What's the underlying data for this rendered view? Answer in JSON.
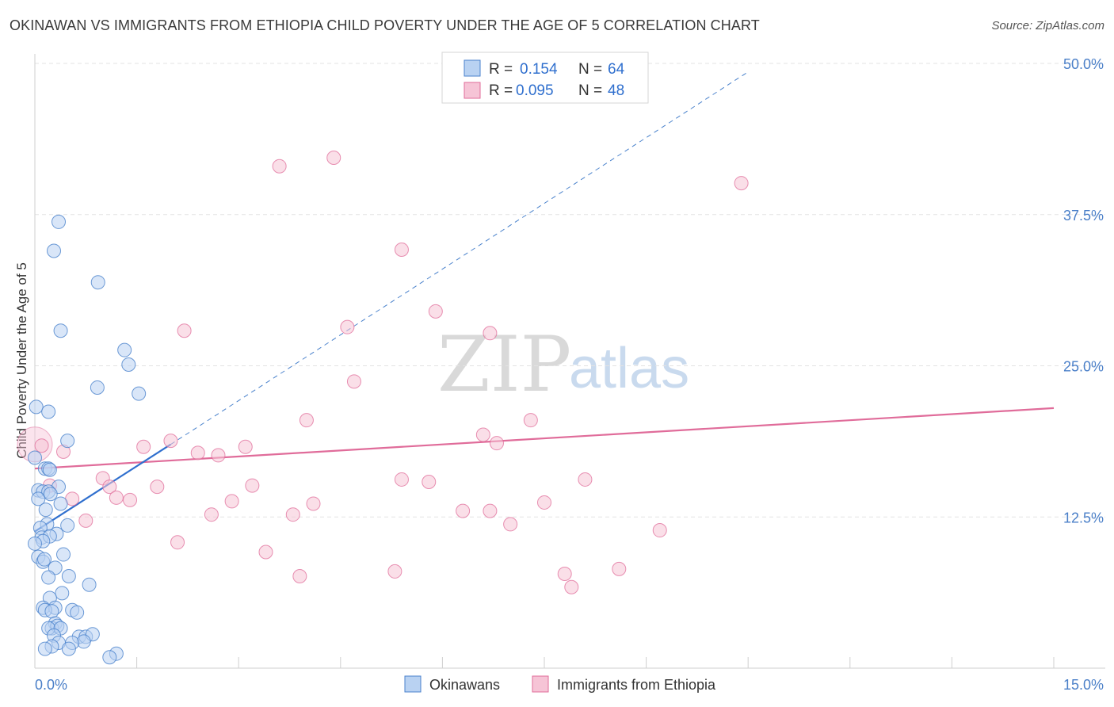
{
  "title": "OKINAWAN VS IMMIGRANTS FROM ETHIOPIA CHILD POVERTY UNDER THE AGE OF 5 CORRELATION CHART",
  "source": "Source: ZipAtlas.com",
  "watermark": {
    "zip": "ZIP",
    "atlas": "atlas"
  },
  "colors": {
    "blue": "#4a82cc",
    "blue_fill": "#b9d2f2",
    "pink": "#e06c9a",
    "pink_fill": "#f6c4d6",
    "tick_text": "#4a7fc8",
    "grid": "#e3e3e3"
  },
  "legend": {
    "rows": [
      {
        "r_label": "R =",
        "r_value": "0.154",
        "n_label": "N =",
        "n_value": "64",
        "series": "blue"
      },
      {
        "r_label": "R =",
        "r_value": "0.095",
        "n_label": "N =",
        "n_value": "48",
        "series": "pink"
      }
    ]
  },
  "chart_data": {
    "type": "scatter",
    "title": "OKINAWAN VS IMMIGRANTS FROM ETHIOPIA CHILD POVERTY UNDER THE AGE OF 5 CORRELATION CHART",
    "xlabel": "",
    "ylabel": "Child Poverty Under the Age of 5",
    "xlim": [
      0,
      15
    ],
    "ylim": [
      0,
      50
    ],
    "x_tick_labels": [
      {
        "value": 0,
        "label": "0.0%"
      },
      {
        "value": 15,
        "label": "15.0%"
      }
    ],
    "y_tick_labels": [
      {
        "value": 12.5,
        "label": "12.5%"
      },
      {
        "value": 25,
        "label": "25.0%"
      },
      {
        "value": 37.5,
        "label": "37.5%"
      },
      {
        "value": 50,
        "label": "50.0%"
      }
    ],
    "y_gridlines": [
      12.5,
      25,
      37.5,
      50
    ],
    "series": [
      {
        "name": "Okinawans",
        "color": "blue",
        "r": 0.154,
        "n": 64,
        "trend_solid": {
          "x": [
            0.0,
            2.0
          ],
          "y": [
            11.3,
            18.5
          ]
        },
        "trend_dashed": {
          "x": [
            2.0,
            10.5
          ],
          "y": [
            18.5,
            49.3
          ]
        },
        "points": [
          [
            0.35,
            36.9
          ],
          [
            0.28,
            34.5
          ],
          [
            0.93,
            31.9
          ],
          [
            0.38,
            27.9
          ],
          [
            1.32,
            26.3
          ],
          [
            1.38,
            25.1
          ],
          [
            0.92,
            23.2
          ],
          [
            1.53,
            22.7
          ],
          [
            0.02,
            21.6
          ],
          [
            0.2,
            21.2
          ],
          [
            0.48,
            18.8
          ],
          [
            0.0,
            17.4
          ],
          [
            0.15,
            16.5
          ],
          [
            0.2,
            16.5
          ],
          [
            0.22,
            16.4
          ],
          [
            0.35,
            15.0
          ],
          [
            0.05,
            14.7
          ],
          [
            0.12,
            14.6
          ],
          [
            0.2,
            14.6
          ],
          [
            0.23,
            14.4
          ],
          [
            0.05,
            14.0
          ],
          [
            0.38,
            13.6
          ],
          [
            0.16,
            13.1
          ],
          [
            0.48,
            11.8
          ],
          [
            0.18,
            11.9
          ],
          [
            0.08,
            11.6
          ],
          [
            0.32,
            11.1
          ],
          [
            0.1,
            10.8
          ],
          [
            0.22,
            10.9
          ],
          [
            0.12,
            10.5
          ],
          [
            0.0,
            10.3
          ],
          [
            0.42,
            9.4
          ],
          [
            0.05,
            9.2
          ],
          [
            0.12,
            8.8
          ],
          [
            0.14,
            9.0
          ],
          [
            0.3,
            8.3
          ],
          [
            0.5,
            7.6
          ],
          [
            0.2,
            7.5
          ],
          [
            0.8,
            6.9
          ],
          [
            0.4,
            6.2
          ],
          [
            0.22,
            5.8
          ],
          [
            0.12,
            5.0
          ],
          [
            0.3,
            5.0
          ],
          [
            0.55,
            4.8
          ],
          [
            0.15,
            4.8
          ],
          [
            0.25,
            4.7
          ],
          [
            0.62,
            4.6
          ],
          [
            0.3,
            3.7
          ],
          [
            0.25,
            3.3
          ],
          [
            0.33,
            3.5
          ],
          [
            0.2,
            3.3
          ],
          [
            0.38,
            3.3
          ],
          [
            0.28,
            2.7
          ],
          [
            0.65,
            2.6
          ],
          [
            0.75,
            2.6
          ],
          [
            0.85,
            2.8
          ],
          [
            0.72,
            2.2
          ],
          [
            0.55,
            2.1
          ],
          [
            0.35,
            2.1
          ],
          [
            0.25,
            1.8
          ],
          [
            0.5,
            1.6
          ],
          [
            0.15,
            1.6
          ],
          [
            1.2,
            1.2
          ],
          [
            1.1,
            0.9
          ]
        ]
      },
      {
        "name": "Immigrants from Ethiopia",
        "color": "pink",
        "r": 0.095,
        "n": 48,
        "trend": {
          "x": [
            0,
            15
          ],
          "y": [
            16.5,
            21.5
          ]
        },
        "points": [
          [
            4.4,
            42.2
          ],
          [
            3.6,
            41.5
          ],
          [
            10.4,
            40.1
          ],
          [
            5.4,
            34.6
          ],
          [
            5.9,
            29.5
          ],
          [
            4.6,
            28.2
          ],
          [
            2.2,
            27.9
          ],
          [
            6.7,
            27.7
          ],
          [
            4.7,
            23.7
          ],
          [
            4.0,
            20.5
          ],
          [
            7.3,
            20.5
          ],
          [
            6.6,
            19.3
          ],
          [
            2.0,
            18.8
          ],
          [
            6.8,
            18.6
          ],
          [
            0.1,
            18.4
          ],
          [
            1.6,
            18.3
          ],
          [
            3.1,
            18.3
          ],
          [
            0.42,
            17.9
          ],
          [
            2.4,
            17.8
          ],
          [
            2.7,
            17.6
          ],
          [
            1.0,
            15.7
          ],
          [
            5.4,
            15.6
          ],
          [
            8.1,
            15.6
          ],
          [
            5.8,
            15.4
          ],
          [
            1.1,
            15.0
          ],
          [
            1.8,
            15.0
          ],
          [
            3.2,
            15.1
          ],
          [
            0.22,
            15.1
          ],
          [
            1.2,
            14.1
          ],
          [
            2.9,
            13.8
          ],
          [
            1.4,
            13.9
          ],
          [
            0.55,
            14.0
          ],
          [
            4.1,
            13.6
          ],
          [
            7.5,
            13.7
          ],
          [
            6.3,
            13.0
          ],
          [
            6.7,
            13.0
          ],
          [
            2.6,
            12.7
          ],
          [
            3.8,
            12.7
          ],
          [
            0.75,
            12.2
          ],
          [
            7.0,
            11.9
          ],
          [
            9.2,
            11.4
          ],
          [
            2.1,
            10.4
          ],
          [
            3.4,
            9.6
          ],
          [
            8.6,
            8.2
          ],
          [
            7.8,
            7.8
          ],
          [
            5.3,
            8.0
          ],
          [
            3.9,
            7.6
          ],
          [
            7.9,
            6.7
          ]
        ]
      }
    ],
    "legend_bottom": [
      "Okinawans",
      "Immigrants from Ethiopia"
    ]
  }
}
